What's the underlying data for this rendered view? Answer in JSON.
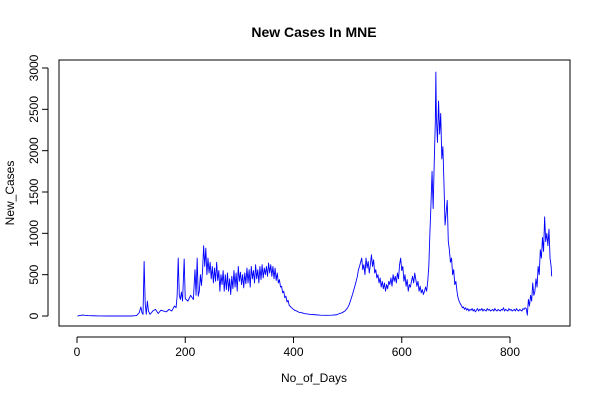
{
  "chart_data": {
    "type": "line",
    "title": "New Cases In MNE",
    "xlabel": "No_of_Days",
    "ylabel": "New_Cases",
    "xlim": [
      0,
      875
    ],
    "ylim": [
      0,
      3000
    ],
    "x_ticks": [
      0,
      200,
      400,
      600,
      800
    ],
    "y_ticks": [
      0,
      500,
      1000,
      1500,
      2000,
      2500,
      3000
    ],
    "grid": false,
    "legend": "none",
    "series": [
      {
        "color": "#0000ff",
        "points": [
          [
            1,
            0
          ],
          [
            5,
            5
          ],
          [
            10,
            12
          ],
          [
            15,
            8
          ],
          [
            20,
            5
          ],
          [
            30,
            3
          ],
          [
            40,
            1
          ],
          [
            60,
            0
          ],
          [
            80,
            0
          ],
          [
            100,
            0
          ],
          [
            110,
            5
          ],
          [
            115,
            40
          ],
          [
            118,
            110
          ],
          [
            120,
            40
          ],
          [
            122,
            20
          ],
          [
            124,
            660
          ],
          [
            126,
            150
          ],
          [
            128,
            20
          ],
          [
            130,
            180
          ],
          [
            132,
            60
          ],
          [
            135,
            20
          ],
          [
            140,
            60
          ],
          [
            145,
            80
          ],
          [
            150,
            30
          ],
          [
            155,
            70
          ],
          [
            160,
            60
          ],
          [
            165,
            50
          ],
          [
            170,
            80
          ],
          [
            175,
            60
          ],
          [
            180,
            120
          ],
          [
            183,
            100
          ],
          [
            185,
            240
          ],
          [
            187,
            700
          ],
          [
            189,
            250
          ],
          [
            191,
            200
          ],
          [
            193,
            290
          ],
          [
            195,
            180
          ],
          [
            198,
            690
          ],
          [
            200,
            210
          ],
          [
            205,
            180
          ],
          [
            210,
            250
          ],
          [
            215,
            200
          ],
          [
            218,
            560
          ],
          [
            220,
            250
          ],
          [
            222,
            700
          ],
          [
            224,
            240
          ],
          [
            226,
            300
          ],
          [
            228,
            500
          ],
          [
            230,
            370
          ],
          [
            232,
            550
          ],
          [
            234,
            850
          ],
          [
            236,
            600
          ],
          [
            238,
            820
          ],
          [
            240,
            500
          ],
          [
            242,
            700
          ],
          [
            244,
            520
          ],
          [
            246,
            650
          ],
          [
            248,
            450
          ],
          [
            250,
            600
          ],
          [
            252,
            400
          ],
          [
            254,
            580
          ],
          [
            256,
            420
          ],
          [
            258,
            650
          ],
          [
            260,
            430
          ],
          [
            262,
            550
          ],
          [
            264,
            300
          ],
          [
            266,
            500
          ],
          [
            268,
            380
          ],
          [
            270,
            550
          ],
          [
            272,
            300
          ],
          [
            274,
            500
          ],
          [
            276,
            320
          ],
          [
            278,
            520
          ],
          [
            280,
            300
          ],
          [
            282,
            450
          ],
          [
            284,
            260
          ],
          [
            286,
            480
          ],
          [
            288,
            330
          ],
          [
            290,
            550
          ],
          [
            292,
            350
          ],
          [
            294,
            520
          ],
          [
            296,
            300
          ],
          [
            298,
            600
          ],
          [
            300,
            420
          ],
          [
            302,
            530
          ],
          [
            304,
            380
          ],
          [
            306,
            500
          ],
          [
            308,
            340
          ],
          [
            310,
            520
          ],
          [
            312,
            390
          ],
          [
            314,
            580
          ],
          [
            316,
            400
          ],
          [
            318,
            560
          ],
          [
            320,
            350
          ],
          [
            322,
            600
          ],
          [
            324,
            450
          ],
          [
            326,
            550
          ],
          [
            328,
            400
          ],
          [
            330,
            620
          ],
          [
            332,
            450
          ],
          [
            334,
            560
          ],
          [
            336,
            400
          ],
          [
            338,
            600
          ],
          [
            340,
            440
          ],
          [
            342,
            620
          ],
          [
            344,
            460
          ],
          [
            346,
            580
          ],
          [
            348,
            500
          ],
          [
            350,
            600
          ],
          [
            352,
            480
          ],
          [
            354,
            640
          ],
          [
            356,
            520
          ],
          [
            358,
            620
          ],
          [
            360,
            480
          ],
          [
            362,
            600
          ],
          [
            364,
            450
          ],
          [
            366,
            580
          ],
          [
            368,
            430
          ],
          [
            370,
            520
          ],
          [
            372,
            400
          ],
          [
            374,
            440
          ],
          [
            376,
            350
          ],
          [
            378,
            360
          ],
          [
            380,
            280
          ],
          [
            382,
            300
          ],
          [
            384,
            220
          ],
          [
            386,
            240
          ],
          [
            388,
            170
          ],
          [
            390,
            190
          ],
          [
            392,
            130
          ],
          [
            395,
            110
          ],
          [
            398,
            90
          ],
          [
            402,
            70
          ],
          [
            406,
            60
          ],
          [
            410,
            45
          ],
          [
            415,
            40
          ],
          [
            420,
            30
          ],
          [
            425,
            25
          ],
          [
            430,
            20
          ],
          [
            440,
            15
          ],
          [
            450,
            10
          ],
          [
            460,
            8
          ],
          [
            470,
            10
          ],
          [
            480,
            15
          ],
          [
            485,
            30
          ],
          [
            490,
            40
          ],
          [
            495,
            60
          ],
          [
            500,
            100
          ],
          [
            503,
            140
          ],
          [
            506,
            200
          ],
          [
            509,
            260
          ],
          [
            512,
            330
          ],
          [
            515,
            400
          ],
          [
            518,
            480
          ],
          [
            520,
            560
          ],
          [
            522,
            600
          ],
          [
            524,
            650
          ],
          [
            526,
            700
          ],
          [
            528,
            560
          ],
          [
            530,
            620
          ],
          [
            532,
            500
          ],
          [
            534,
            700
          ],
          [
            536,
            580
          ],
          [
            538,
            660
          ],
          [
            540,
            520
          ],
          [
            542,
            620
          ],
          [
            544,
            740
          ],
          [
            546,
            600
          ],
          [
            548,
            680
          ],
          [
            550,
            520
          ],
          [
            552,
            560
          ],
          [
            554,
            460
          ],
          [
            556,
            500
          ],
          [
            558,
            400
          ],
          [
            560,
            460
          ],
          [
            562,
            350
          ],
          [
            564,
            420
          ],
          [
            566,
            330
          ],
          [
            568,
            400
          ],
          [
            570,
            300
          ],
          [
            572,
            380
          ],
          [
            574,
            330
          ],
          [
            576,
            420
          ],
          [
            578,
            380
          ],
          [
            580,
            460
          ],
          [
            582,
            360
          ],
          [
            584,
            500
          ],
          [
            586,
            420
          ],
          [
            588,
            480
          ],
          [
            590,
            400
          ],
          [
            592,
            520
          ],
          [
            594,
            450
          ],
          [
            596,
            620
          ],
          [
            598,
            700
          ],
          [
            600,
            550
          ],
          [
            602,
            600
          ],
          [
            604,
            420
          ],
          [
            606,
            500
          ],
          [
            608,
            360
          ],
          [
            610,
            440
          ],
          [
            612,
            300
          ],
          [
            614,
            380
          ],
          [
            616,
            350
          ],
          [
            618,
            420
          ],
          [
            620,
            480
          ],
          [
            622,
            400
          ],
          [
            624,
            520
          ],
          [
            626,
            440
          ],
          [
            628,
            360
          ],
          [
            630,
            420
          ],
          [
            632,
            300
          ],
          [
            634,
            360
          ],
          [
            636,
            280
          ],
          [
            638,
            320
          ],
          [
            640,
            260
          ],
          [
            642,
            300
          ],
          [
            644,
            350
          ],
          [
            646,
            300
          ],
          [
            648,
            420
          ],
          [
            650,
            600
          ],
          [
            652,
            1000
          ],
          [
            654,
            1350
          ],
          [
            656,
            1750
          ],
          [
            658,
            1300
          ],
          [
            660,
            1850
          ],
          [
            662,
            2350
          ],
          [
            663,
            2950
          ],
          [
            664,
            2400
          ],
          [
            666,
            2100
          ],
          [
            668,
            2600
          ],
          [
            670,
            2200
          ],
          [
            672,
            2450
          ],
          [
            674,
            1900
          ],
          [
            676,
            2050
          ],
          [
            678,
            1600
          ],
          [
            680,
            1100
          ],
          [
            682,
            1250
          ],
          [
            684,
            1400
          ],
          [
            686,
            900
          ],
          [
            688,
            800
          ],
          [
            690,
            650
          ],
          [
            692,
            700
          ],
          [
            694,
            500
          ],
          [
            696,
            560
          ],
          [
            698,
            380
          ],
          [
            700,
            420
          ],
          [
            702,
            300
          ],
          [
            704,
            220
          ],
          [
            706,
            180
          ],
          [
            708,
            150
          ],
          [
            710,
            130
          ],
          [
            712,
            100
          ],
          [
            714,
            110
          ],
          [
            716,
            80
          ],
          [
            718,
            100
          ],
          [
            720,
            70
          ],
          [
            722,
            90
          ],
          [
            724,
            60
          ],
          [
            726,
            80
          ],
          [
            728,
            70
          ],
          [
            730,
            90
          ],
          [
            732,
            60
          ],
          [
            734,
            80
          ],
          [
            736,
            50
          ],
          [
            738,
            70
          ],
          [
            740,
            90
          ],
          [
            742,
            60
          ],
          [
            744,
            80
          ],
          [
            746,
            70
          ],
          [
            748,
            90
          ],
          [
            750,
            60
          ],
          [
            752,
            80
          ],
          [
            754,
            70
          ],
          [
            756,
            60
          ],
          [
            758,
            90
          ],
          [
            760,
            70
          ],
          [
            762,
            80
          ],
          [
            764,
            60
          ],
          [
            766,
            70
          ],
          [
            768,
            80
          ],
          [
            770,
            60
          ],
          [
            772,
            90
          ],
          [
            774,
            70
          ],
          [
            776,
            60
          ],
          [
            778,
            80
          ],
          [
            780,
            70
          ],
          [
            782,
            60
          ],
          [
            784,
            80
          ],
          [
            786,
            70
          ],
          [
            788,
            100
          ],
          [
            790,
            60
          ],
          [
            792,
            80
          ],
          [
            794,
            70
          ],
          [
            796,
            60
          ],
          [
            798,
            90
          ],
          [
            800,
            70
          ],
          [
            802,
            80
          ],
          [
            804,
            60
          ],
          [
            806,
            70
          ],
          [
            808,
            80
          ],
          [
            810,
            60
          ],
          [
            812,
            90
          ],
          [
            814,
            70
          ],
          [
            816,
            60
          ],
          [
            818,
            80
          ],
          [
            820,
            70
          ],
          [
            822,
            60
          ],
          [
            824,
            90
          ],
          [
            826,
            80
          ],
          [
            828,
            100
          ],
          [
            830,
            90
          ],
          [
            832,
            10
          ],
          [
            834,
            200
          ],
          [
            836,
            120
          ],
          [
            838,
            250
          ],
          [
            840,
            180
          ],
          [
            842,
            400
          ],
          [
            844,
            250
          ],
          [
            846,
            300
          ],
          [
            848,
            450
          ],
          [
            850,
            350
          ],
          [
            852,
            600
          ],
          [
            854,
            500
          ],
          [
            856,
            800
          ],
          [
            858,
            700
          ],
          [
            860,
            950
          ],
          [
            862,
            780
          ],
          [
            864,
            1200
          ],
          [
            866,
            900
          ],
          [
            868,
            1000
          ],
          [
            870,
            850
          ],
          [
            872,
            1050
          ],
          [
            874,
            700
          ],
          [
            876,
            600
          ],
          [
            877,
            480
          ]
        ]
      }
    ]
  }
}
